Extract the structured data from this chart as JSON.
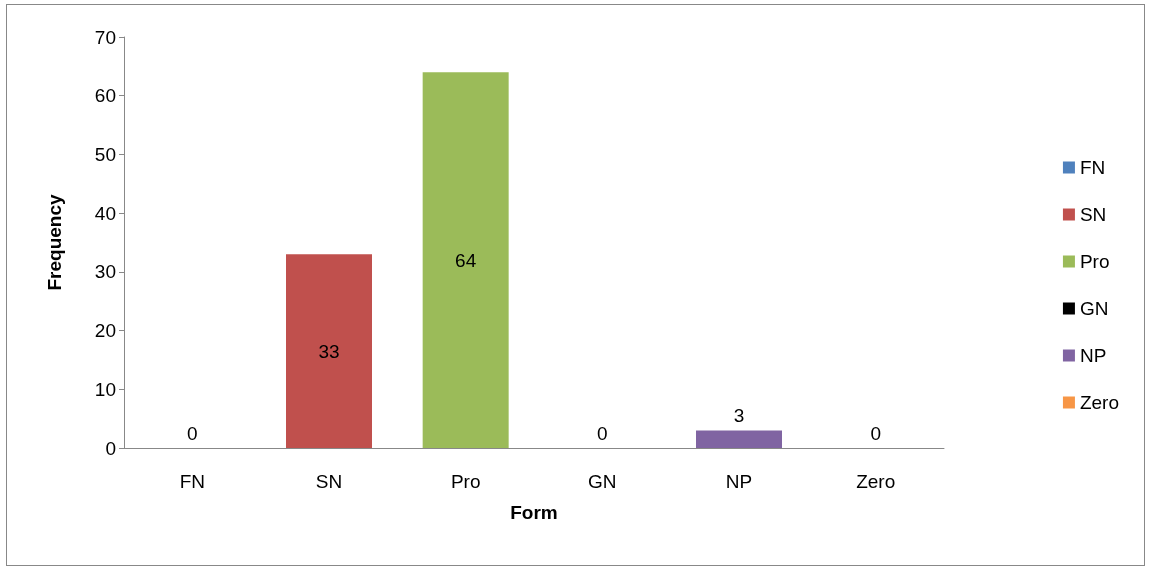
{
  "chart_data": {
    "type": "bar",
    "xlabel": "Form",
    "ylabel": "Frequency",
    "categories": [
      "FN",
      "SN",
      "Pro",
      "GN",
      "NP",
      "Zero"
    ],
    "series": [
      {
        "name": "FN",
        "color": "#4f81bd",
        "values": [
          0,
          null,
          null,
          null,
          null,
          null
        ]
      },
      {
        "name": "SN",
        "color": "#c0504d",
        "values": [
          null,
          33,
          null,
          null,
          null,
          null
        ]
      },
      {
        "name": "Pro",
        "color": "#9bbb59",
        "values": [
          null,
          null,
          64,
          null,
          null,
          null
        ]
      },
      {
        "name": "GN",
        "color": "#000000",
        "values": [
          null,
          null,
          null,
          0,
          null,
          null
        ]
      },
      {
        "name": "NP",
        "color": "#8064a2",
        "values": [
          null,
          null,
          null,
          null,
          3,
          null
        ]
      },
      {
        "name": "Zero",
        "color": "#f79646",
        "values": [
          null,
          null,
          null,
          null,
          null,
          0
        ]
      }
    ],
    "ylim": [
      0,
      70
    ],
    "yticks": [
      0,
      10,
      20,
      30,
      40,
      50,
      60,
      70
    ],
    "legend": "right",
    "data_labels": true
  }
}
